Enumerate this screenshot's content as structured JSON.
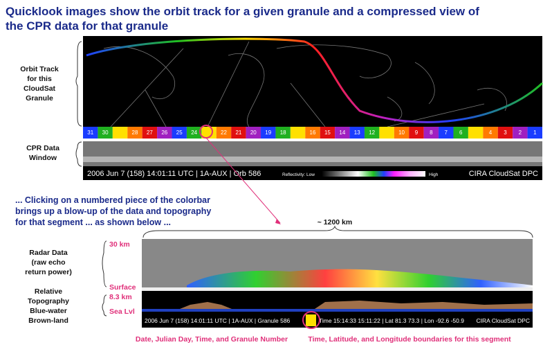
{
  "header": {
    "title_lines": [
      "Quicklook images show the orbit track for a given granule and a compressed view of",
      "the CPR data for that granule"
    ]
  },
  "orbit_label": [
    "Orbit Track",
    "for this",
    "CloudSat",
    "Granule"
  ],
  "cpr_label": [
    "CPR Data",
    "Window"
  ],
  "colorbar": [
    31,
    30,
    null,
    28,
    27,
    26,
    25,
    24,
    null,
    22,
    21,
    20,
    19,
    18,
    null,
    16,
    15,
    14,
    13,
    12,
    null,
    10,
    9,
    8,
    7,
    6,
    null,
    4,
    3,
    2,
    1
  ],
  "status_bar": {
    "info": "2006 Jun 7 (158) 14:01:11 UTC | 1A-AUX | Orb 586",
    "reflectivity": "Reflectivity: Low",
    "high": "High",
    "credit": "CIRA CloudSat DPC"
  },
  "instruction": [
    "... Clicking on a numbered piece of the colorbar",
    "brings up a blow-up of the data and topography",
    "for that segment ... as shown below ..."
  ],
  "distance": "~ 1200 km",
  "radar_label": [
    "Radar Data",
    "(raw echo",
    "return power)"
  ],
  "topo_label": [
    "Relative",
    "Topography",
    "Blue-water",
    "Brown-land"
  ],
  "axis_labels": {
    "top": "30 km",
    "surface": "Surface",
    "topo_top": "8.3 km",
    "sea": "Sea Lvl"
  },
  "segment_bar": {
    "info": "2006 Jun 7 (158) 14:01:11 UTC | 1A-AUX | Granule 586",
    "bounds": "Time 15:14:33 15:11:22 | Lat 81.3 73.3 | Lon -92.6 -50.9",
    "credit": "CIRA CloudSat DPC"
  },
  "captions": {
    "left": "Date, Julian Day, Time, and Granule Number",
    "right": "Time, Latitude, and Longitude boundaries for this segment"
  }
}
